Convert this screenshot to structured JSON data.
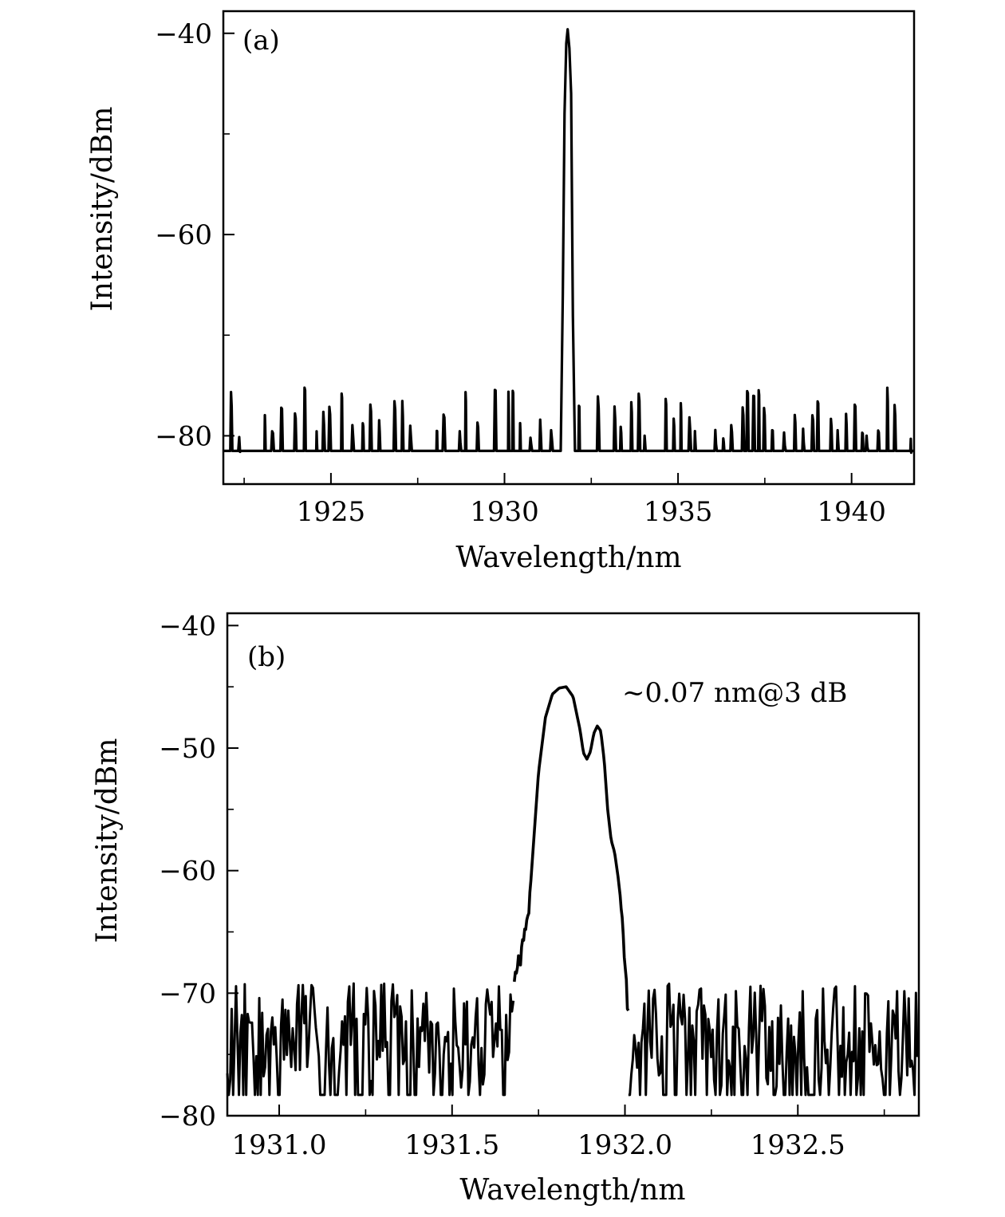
{
  "chart_data": [
    {
      "type": "line",
      "panel_label": "(a)",
      "xlabel": "Wavelength/nm",
      "ylabel": "Intensity/dBm",
      "xlim": [
        1921.9,
        1941.8
      ],
      "ylim": [
        -84.8,
        -37.8
      ],
      "xticks": [
        1925,
        1930,
        1935,
        1940
      ],
      "xtick_labels": [
        "1925",
        "1930",
        "1935",
        "1940"
      ],
      "yticks": [
        -40,
        -60,
        -80
      ],
      "ytick_labels": [
        "−40",
        "−60",
        "−80"
      ],
      "grid": false,
      "series": [
        {
          "color": "#000000",
          "noise_floor": -81.5,
          "noise_peak_range": [
            -80.5,
            -75.2
          ],
          "noise_x_range": [
            1922.1,
            1941.8
          ],
          "peak": {
            "x": [
              1931.62,
              1931.68,
              1931.73,
              1931.78,
              1931.82,
              1931.87,
              1931.92,
              1931.97,
              1932.03
            ],
            "y": [
              -81.5,
              -66.0,
              -48.0,
              -41.0,
              -39.6,
              -41.5,
              -46.0,
              -68.0,
              -81.5
            ]
          }
        }
      ]
    },
    {
      "type": "line",
      "panel_label": "(b)",
      "xlabel": "Wavelength/nm",
      "ylabel": "Intensity/dBm",
      "xlim": [
        1930.85,
        1932.85
      ],
      "ylim": [
        -80,
        -39
      ],
      "xticks": [
        1931.0,
        1931.5,
        1932.0,
        1932.5
      ],
      "xtick_labels": [
        "1931.0",
        "1931.5",
        "1932.0",
        "1932.5"
      ],
      "yticks": [
        -40,
        -50,
        -60,
        -70,
        -80
      ],
      "ytick_labels": [
        "−40",
        "−50",
        "−60",
        "−70",
        "−80"
      ],
      "grid": false,
      "annotation": "~0.07 nm@3 dB",
      "series": [
        {
          "color": "#000000",
          "noise_range": [
            -78.3,
            -69.2
          ],
          "signal": {
            "x": [
              1931.68,
              1931.7,
              1931.72,
              1931.73,
              1931.75,
              1931.77,
              1931.79,
              1931.81,
              1931.83,
              1931.85,
              1931.87,
              1931.88,
              1931.89,
              1931.9,
              1931.91,
              1931.92,
              1931.93,
              1931.94,
              1931.95,
              1931.96,
              1931.97,
              1931.98,
              1931.99,
              1932.0,
              1932.01
            ],
            "y": [
              -68.5,
              -67.0,
              -64.0,
              -60.0,
              -52.0,
              -47.5,
              -45.6,
              -45.1,
              -45.0,
              -45.8,
              -48.5,
              -50.4,
              -50.9,
              -50.3,
              -48.8,
              -48.2,
              -48.6,
              -51.0,
              -55.0,
              -57.5,
              -58.5,
              -60.5,
              -63.0,
              -68.0,
              -72.0
            ]
          }
        }
      ]
    }
  ]
}
